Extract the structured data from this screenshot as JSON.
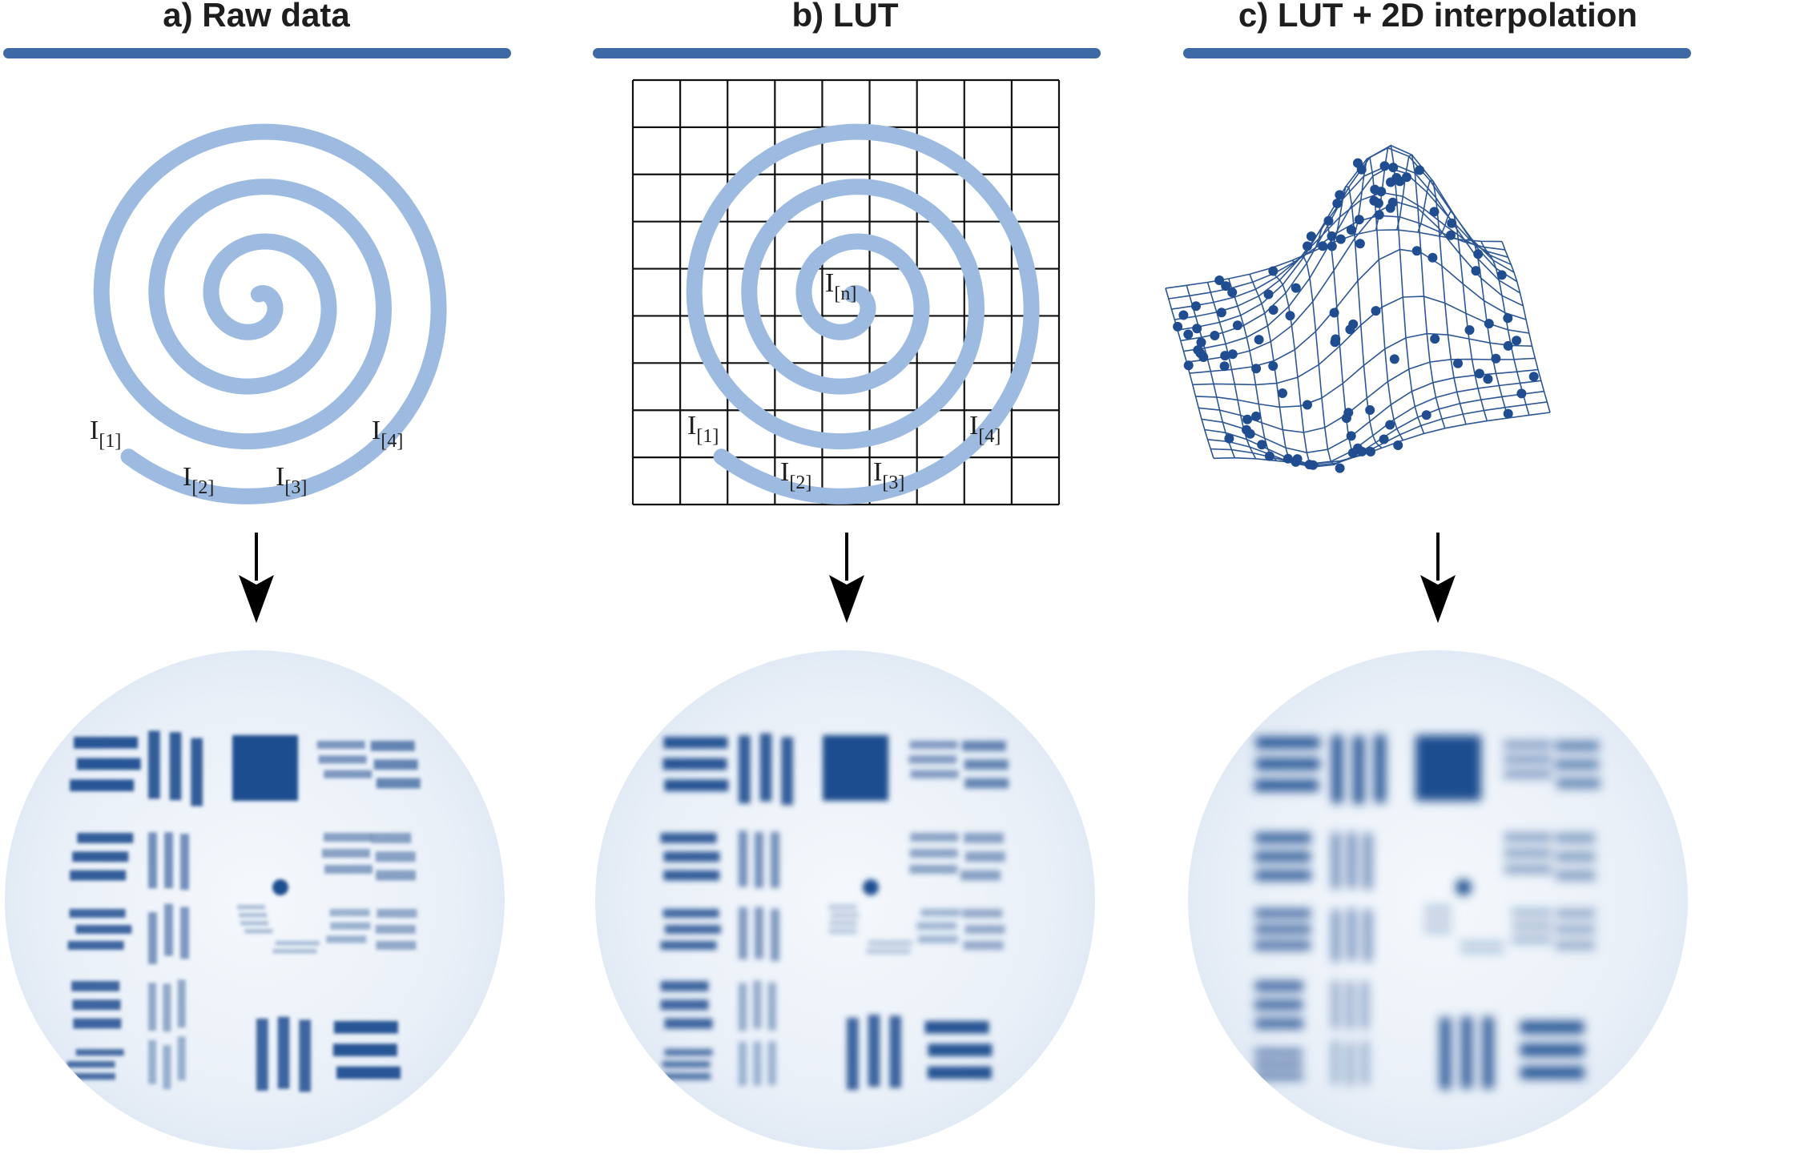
{
  "panels": [
    {
      "id": "a",
      "title": "a) Raw data"
    },
    {
      "id": "b",
      "title": "b) LUT"
    },
    {
      "id": "c",
      "title": "c) LUT + 2D interpolation"
    }
  ],
  "labels": {
    "I": "I",
    "sub1": "[1]",
    "sub2": "[2]",
    "sub3": "[3]",
    "sub4": "[4]",
    "subn": "[n]"
  },
  "colors": {
    "accent_bar": "#3d6aa6",
    "spiral": "#9dbbe0",
    "grid": "#111111",
    "mesh": "#2c5694",
    "image_dark": "#1f4d8f",
    "image_bg": "#eef3fa"
  },
  "icons": [
    "down-arrow-icon",
    "down-arrow-icon",
    "down-arrow-icon"
  ]
}
